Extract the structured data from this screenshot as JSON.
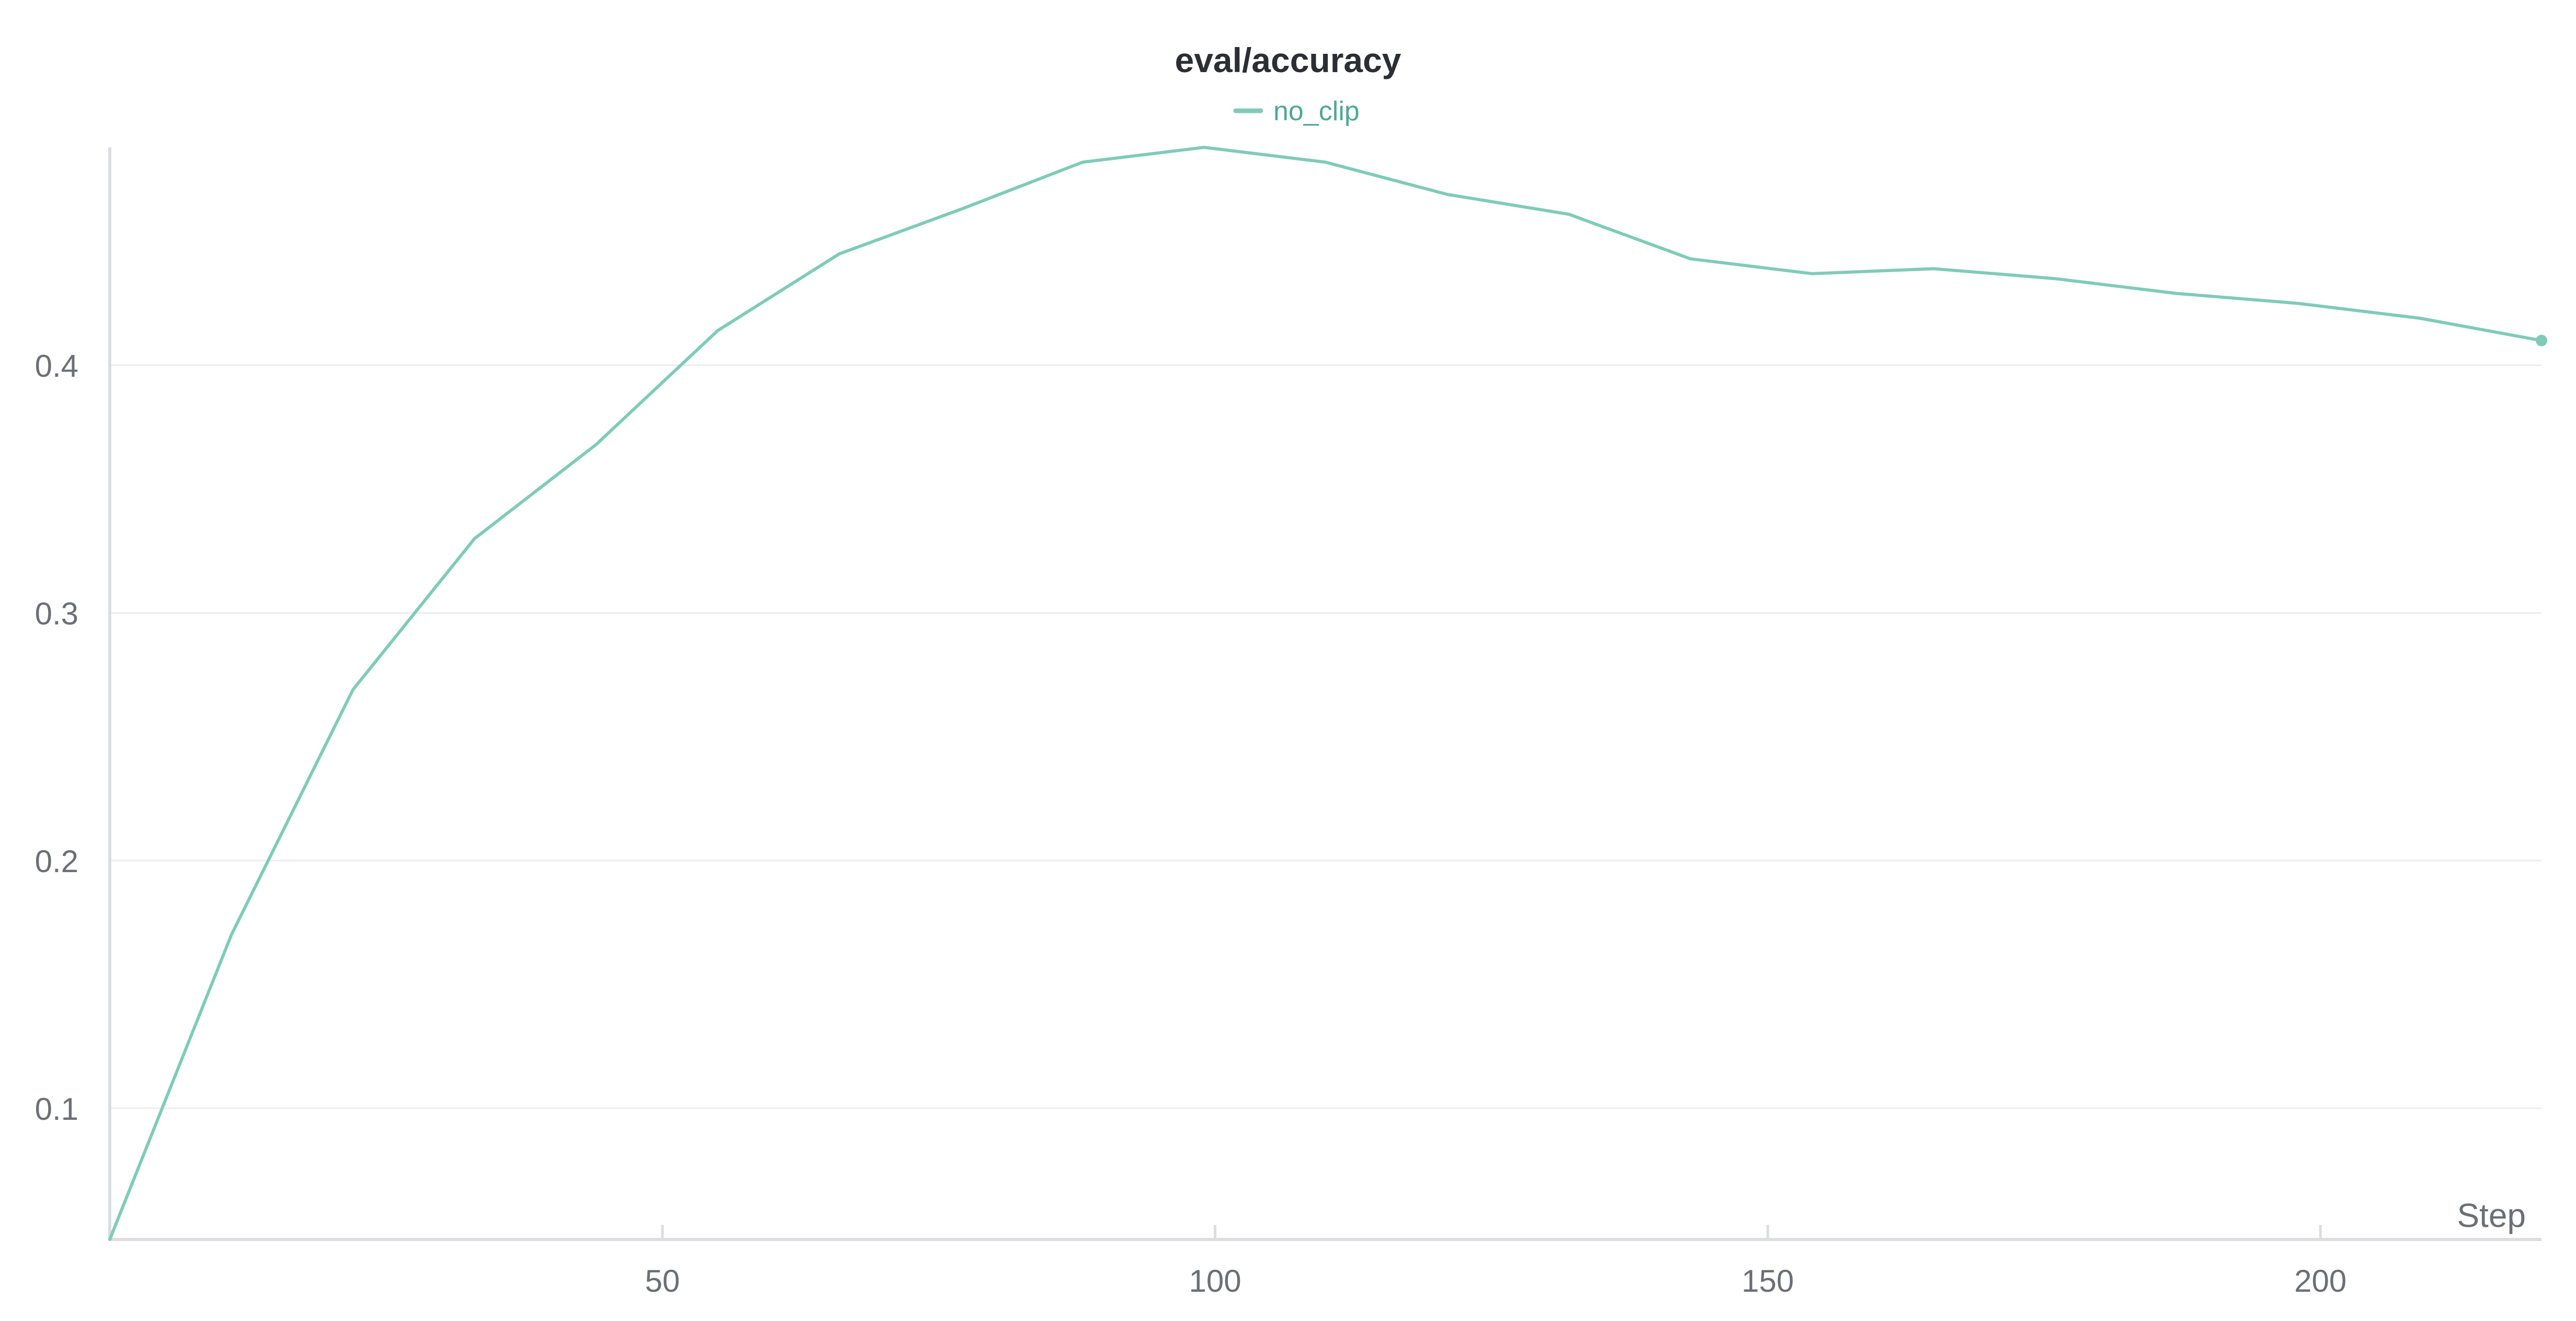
{
  "chart_data": {
    "type": "line",
    "title": "eval/accuracy",
    "xlabel": "Step",
    "ylabel": "",
    "xlim": [
      0,
      220
    ],
    "ylim": [
      0.047,
      0.488
    ],
    "x_ticks": [
      50,
      100,
      150,
      200
    ],
    "y_ticks": [
      0.1,
      0.2,
      0.3,
      0.4
    ],
    "x_tick_labels": [
      "50",
      "100",
      "150",
      "200"
    ],
    "y_tick_labels": [
      "0.1",
      "0.2",
      "0.3",
      "0.4"
    ],
    "grid": true,
    "legend": "top-center",
    "series": [
      {
        "name": "no_clip",
        "color": "#7fcbb8",
        "x": [
          0,
          11,
          22,
          33,
          44,
          55,
          66,
          77,
          88,
          99,
          110,
          121,
          132,
          143,
          154,
          165,
          176,
          187,
          198,
          209,
          220
        ],
        "y": [
          0.047,
          0.17,
          0.269,
          0.33,
          0.368,
          0.414,
          0.445,
          0.463,
          0.482,
          0.488,
          0.482,
          0.469,
          0.461,
          0.443,
          0.437,
          0.439,
          0.435,
          0.429,
          0.425,
          0.419,
          0.41
        ]
      }
    ]
  }
}
